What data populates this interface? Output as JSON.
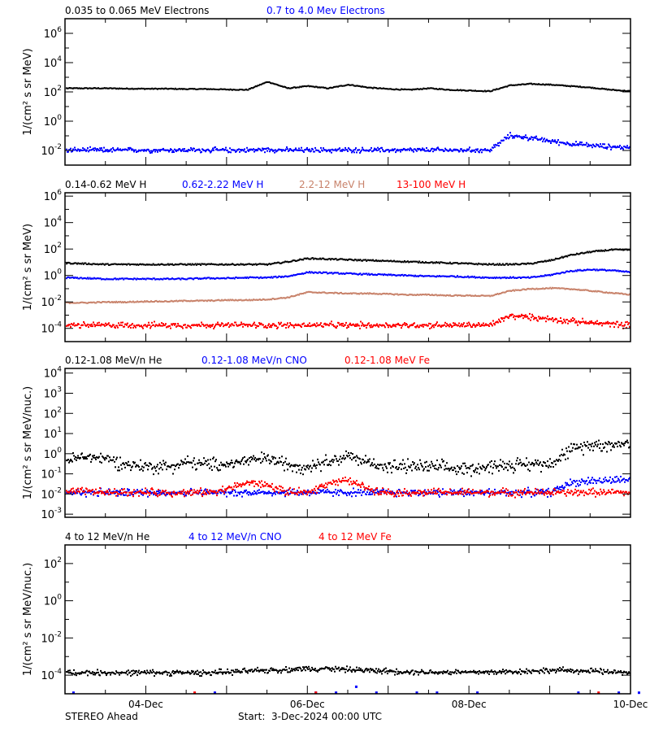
{
  "x_axis": {
    "range": [
      "2024-12-03T00:00",
      "2024-12-10T00:00"
    ],
    "tick_labels": [
      "04-Dec",
      "06-Dec",
      "08-Dec",
      "10-Dec"
    ]
  },
  "footer": {
    "spacecraft": "STEREO Ahead",
    "start": "Start:  3-Dec-2024 00:00 UTC"
  },
  "chart_data": [
    {
      "type": "scatter",
      "ylabel": "1/(cm² s sr MeV)",
      "yscale": "log",
      "ylim": [
        0.001,
        10000000.0
      ],
      "y_tick_exponents": [
        "6",
        "4",
        "2",
        "0",
        "-2"
      ],
      "x_step_hours": 6,
      "series": [
        {
          "name": "0.035 to 0.065 MeV Electrons",
          "color": "#000000",
          "values": [
            200,
            200,
            200,
            190,
            186,
            186,
            178,
            178,
            166,
            158,
            562,
            200,
            282,
            200,
            355,
            224,
            178,
            158,
            200,
            158,
            141,
            126,
            316,
            398,
            355,
            282,
            224,
            158,
            126
          ]
        },
        {
          "name": "0.7 to 4.0 Mev Electrons",
          "color": "#0000ff",
          "values": [
            0.012,
            0.012,
            0.012,
            0.012,
            0.012,
            0.012,
            0.012,
            0.012,
            0.012,
            0.012,
            0.013,
            0.012,
            0.012,
            0.012,
            0.012,
            0.012,
            0.012,
            0.012,
            0.012,
            0.012,
            0.012,
            0.012,
            0.12,
            0.08,
            0.05,
            0.032,
            0.025,
            0.02,
            0.018
          ]
        }
      ]
    },
    {
      "type": "scatter",
      "ylabel": "1/(cm² s sr MeV)",
      "yscale": "log",
      "ylim": [
        1e-05,
        1800000.0
      ],
      "y_tick_exponents": [
        "6",
        "4",
        "2",
        "0",
        "-2",
        "-4"
      ],
      "x_step_hours": 6,
      "series": [
        {
          "name": "0.14-0.62 MeV H",
          "color": "#000000",
          "values": [
            10,
            8.9,
            7.9,
            7.9,
            7.9,
            7.9,
            7.9,
            7.9,
            7.9,
            7.9,
            7.9,
            12.6,
            22.4,
            20,
            17.8,
            15.8,
            14.1,
            12.6,
            11.2,
            10,
            8.9,
            7.9,
            7.9,
            8.9,
            15.8,
            39.8,
            70.8,
            100,
            100
          ]
        },
        {
          "name": "0.62-2.22 MeV H",
          "color": "#0000ff",
          "values": [
            0.79,
            0.71,
            0.63,
            0.63,
            0.63,
            0.63,
            0.63,
            0.71,
            0.71,
            0.79,
            0.79,
            1.0,
            2.0,
            1.78,
            1.58,
            1.41,
            1.26,
            1.12,
            1.0,
            1.0,
            0.89,
            0.79,
            0.79,
            0.79,
            1.26,
            2.5,
            3.2,
            2.8,
            2.0
          ]
        },
        {
          "name": "2.2-12 MeV H",
          "color": "#c8826a",
          "values": [
            0.01,
            0.01,
            0.0112,
            0.0112,
            0.0126,
            0.0126,
            0.0141,
            0.0141,
            0.0158,
            0.0158,
            0.0178,
            0.025,
            0.063,
            0.056,
            0.05,
            0.05,
            0.045,
            0.04,
            0.04,
            0.035,
            0.035,
            0.032,
            0.079,
            0.11,
            0.126,
            0.11,
            0.079,
            0.056,
            0.04
          ]
        },
        {
          "name": "13-100 MeV H",
          "color": "#ff0000",
          "values": [
            0.0002,
            0.0002,
            0.0002,
            0.0002,
            0.0002,
            0.0002,
            0.0002,
            0.0002,
            0.0002,
            0.0002,
            0.0002,
            0.0002,
            0.0002,
            0.0002,
            0.0002,
            0.0002,
            0.0002,
            0.0002,
            0.0002,
            0.0002,
            0.0002,
            0.0002,
            0.001,
            0.0008,
            0.0006,
            0.0004,
            0.0003,
            0.00025,
            0.0002
          ]
        }
      ]
    },
    {
      "type": "scatter",
      "ylabel": "1/(cm² s sr MeV/nuc.)",
      "yscale": "log",
      "ylim": [
        0.0007,
        17000.0
      ],
      "y_tick_exponents": [
        "4",
        "3",
        "2",
        "1",
        "0",
        "-1",
        "-2",
        "-3"
      ],
      "x_step_hours": 6,
      "series": [
        {
          "name": "0.12-1.08 MeV/n He",
          "color": "#000000",
          "values": [
            0.5,
            0.79,
            0.63,
            0.32,
            0.25,
            0.25,
            0.4,
            0.32,
            0.32,
            0.5,
            0.63,
            0.32,
            0.25,
            0.5,
            0.79,
            0.4,
            0.25,
            0.25,
            0.25,
            0.2,
            0.2,
            0.25,
            0.32,
            0.32,
            0.4,
            1.6,
            3.2,
            3.2,
            4
          ]
        },
        {
          "name": "0.12-1.08 MeV/n CNO",
          "color": "#0000ff",
          "values": [
            0.013,
            0.013,
            0.013,
            0.013,
            0.013,
            0.013,
            0.013,
            0.013,
            0.013,
            0.013,
            0.013,
            0.013,
            0.013,
            0.013,
            0.013,
            0.013,
            0.013,
            0.013,
            0.013,
            0.013,
            0.013,
            0.013,
            0.013,
            0.013,
            0.013,
            0.04,
            0.05,
            0.05,
            0.06
          ]
        },
        {
          "name": "0.12-1.08 MeV Fe",
          "color": "#ff0000",
          "values": [
            0.013,
            0.015,
            0.013,
            0.013,
            0.013,
            0.013,
            0.013,
            0.013,
            0.02,
            0.04,
            0.03,
            0.013,
            0.013,
            0.04,
            0.05,
            0.02,
            0.013,
            0.013,
            0.013,
            0.013,
            0.013,
            0.013,
            0.013,
            0.013,
            0.013,
            0.013,
            0.013,
            0.013,
            0.013
          ]
        }
      ]
    },
    {
      "type": "scatter",
      "ylabel": "1/(cm² s sr MeV/nuc.)",
      "yscale": "log",
      "ylim": [
        1e-05,
        1000.0
      ],
      "y_tick_exponents": [
        "2",
        "0",
        "-2",
        "-4"
      ],
      "x_step_hours": 6,
      "series": [
        {
          "name": "4 to 12 MeV/n He",
          "color": "#000000",
          "values": [
            0.00015,
            0.00015,
            0.00015,
            0.00015,
            0.00015,
            0.00015,
            0.00015,
            0.00015,
            0.00016,
            0.00018,
            0.0002,
            0.00022,
            0.00025,
            0.00025,
            0.00022,
            0.0002,
            0.00018,
            0.00017,
            0.00016,
            0.00016,
            0.00016,
            0.00016,
            0.00017,
            0.00018,
            0.0002,
            0.0002,
            0.00018,
            0.00016,
            0.00016
          ]
        },
        {
          "name": "4 to 12 MeV/n CNO",
          "color": "#0000ff",
          "sparse": true,
          "values": [
            1.2e-05,
            null,
            null,
            null,
            null,
            null,
            null,
            1.2e-05,
            null,
            null,
            null,
            null,
            1.2e-05,
            1.2e-05,
            2.5e-05,
            1.2e-05,
            null,
            1.2e-05,
            1.2e-05,
            null,
            1.2e-05,
            null,
            null,
            null,
            null,
            1.2e-05,
            null,
            1.2e-05,
            1.2e-05
          ]
        },
        {
          "name": "4 to 12 MeV Fe",
          "color": "#ff0000",
          "sparse": true,
          "values": [
            null,
            null,
            null,
            null,
            null,
            null,
            1.2e-05,
            null,
            null,
            null,
            null,
            null,
            1.2e-05,
            null,
            null,
            null,
            null,
            null,
            null,
            null,
            null,
            null,
            null,
            null,
            null,
            null,
            1.2e-05,
            null,
            null
          ]
        }
      ]
    }
  ]
}
